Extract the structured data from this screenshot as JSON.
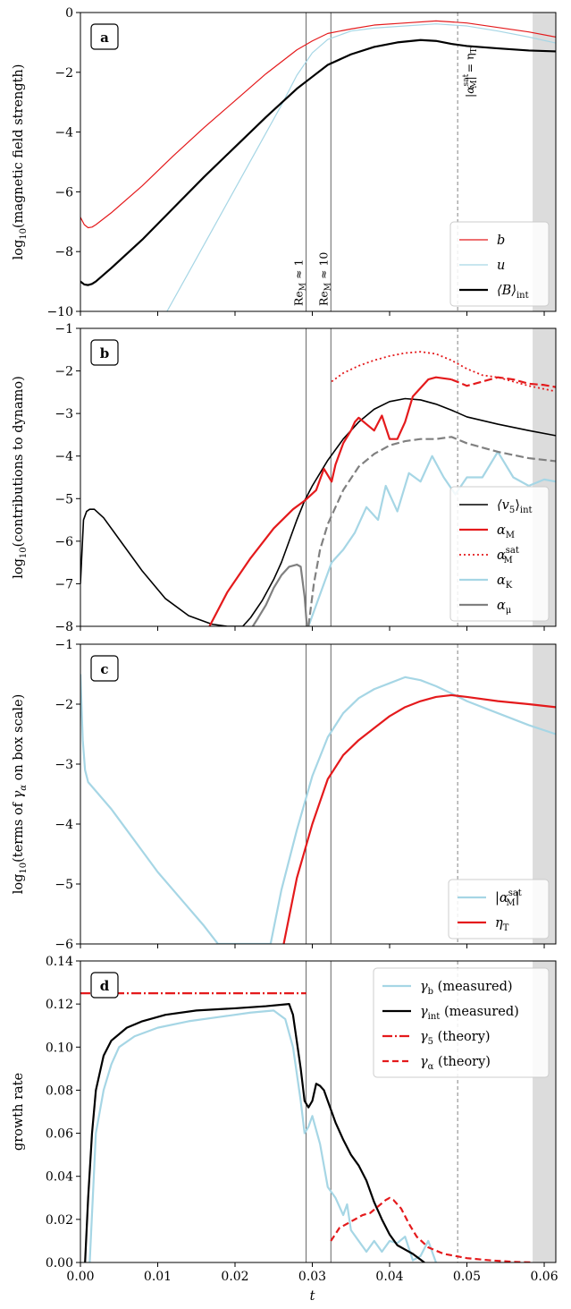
{
  "chart_data": [
    {
      "type": "line",
      "panel": "a",
      "ylabel": "log10(magnetic field strength)",
      "xlim": [
        0,
        0.0615
      ],
      "ylim": [
        -10,
        0
      ],
      "yticks": [
        "0",
        "−2",
        "−4",
        "−6",
        "−8",
        "−10"
      ],
      "vlines": [
        {
          "x": 0.0292,
          "label": "Re_M ≈ 1"
        },
        {
          "x": 0.0324,
          "label": "Re_M ≈ 10"
        }
      ],
      "dashed_vline": {
        "x": 0.0488,
        "label": "|α_M^sat| = η_T"
      },
      "shaded_region": [
        0.0585,
        0.0615
      ],
      "legend_position": "lower right",
      "series": [
        {
          "name": "b",
          "color": "#e41a1c",
          "width": 1.2,
          "x": [
            0.0,
            0.0005,
            0.001,
            0.0015,
            0.002,
            0.004,
            0.008,
            0.012,
            0.016,
            0.02,
            0.024,
            0.028,
            0.03,
            0.032,
            0.035,
            0.038,
            0.042,
            0.046,
            0.05,
            0.054,
            0.058,
            0.0615
          ],
          "y": [
            -6.85,
            -7.1,
            -7.2,
            -7.18,
            -7.1,
            -6.7,
            -5.8,
            -4.8,
            -3.85,
            -2.95,
            -2.05,
            -1.25,
            -0.95,
            -0.7,
            -0.55,
            -0.42,
            -0.35,
            -0.28,
            -0.35,
            -0.5,
            -0.65,
            -0.82
          ]
        },
        {
          "name": "u",
          "color": "#a6d6e5",
          "width": 1.2,
          "x": [
            0.0112,
            0.014,
            0.017,
            0.02,
            0.023,
            0.026,
            0.028,
            0.03,
            0.032,
            0.035,
            0.038,
            0.042,
            0.046,
            0.05,
            0.054,
            0.058,
            0.0615
          ],
          "y": [
            -10,
            -8.7,
            -7.3,
            -5.9,
            -4.5,
            -3.1,
            -2.1,
            -1.35,
            -0.9,
            -0.62,
            -0.52,
            -0.45,
            -0.38,
            -0.45,
            -0.62,
            -0.82,
            -1.02
          ]
        },
        {
          "name": "⟨B⟩int",
          "color": "#000000",
          "width": 2.2,
          "x": [
            0.0,
            0.0005,
            0.001,
            0.0015,
            0.002,
            0.004,
            0.008,
            0.012,
            0.016,
            0.02,
            0.024,
            0.028,
            0.03,
            0.032,
            0.035,
            0.038,
            0.041,
            0.044,
            0.046,
            0.048,
            0.05,
            0.054,
            0.058,
            0.0615
          ],
          "y": [
            -9.0,
            -9.1,
            -9.12,
            -9.08,
            -9.0,
            -8.55,
            -7.6,
            -6.55,
            -5.5,
            -4.5,
            -3.5,
            -2.55,
            -2.15,
            -1.75,
            -1.4,
            -1.15,
            -1.0,
            -0.92,
            -0.95,
            -1.05,
            -1.12,
            -1.2,
            -1.27,
            -1.3
          ]
        }
      ]
    },
    {
      "type": "line",
      "panel": "b",
      "ylabel": "log10(contributions to dynamo)",
      "xlim": [
        0,
        0.0615
      ],
      "ylim": [
        -8,
        -1
      ],
      "yticks": [
        "−1",
        "−2",
        "−3",
        "−4",
        "−5",
        "−6",
        "−7",
        "−8"
      ],
      "legend_position": "lower right",
      "series": [
        {
          "name": "⟨v5⟩int",
          "color": "#000000",
          "width": 1.6,
          "dash": "",
          "x": [
            0.0,
            0.0004,
            0.0008,
            0.0012,
            0.0018,
            0.003,
            0.005,
            0.008,
            0.011,
            0.014,
            0.017,
            0.019,
            0.021,
            0.022,
            0.0235,
            0.025,
            0.026,
            0.027,
            0.028,
            0.029,
            0.03,
            0.032,
            0.034,
            0.036,
            0.038,
            0.04,
            0.042,
            0.044,
            0.046,
            0.048,
            0.05,
            0.054,
            0.058,
            0.0615
          ],
          "y": [
            -7.0,
            -5.5,
            -5.3,
            -5.25,
            -5.25,
            -5.45,
            -5.95,
            -6.7,
            -7.35,
            -7.75,
            -7.95,
            -8.0,
            -8.0,
            -7.8,
            -7.4,
            -6.9,
            -6.5,
            -6.0,
            -5.5,
            -5.05,
            -4.7,
            -4.1,
            -3.6,
            -3.2,
            -2.9,
            -2.72,
            -2.65,
            -2.68,
            -2.78,
            -2.92,
            -3.08,
            -3.25,
            -3.4,
            -3.52
          ]
        },
        {
          "name": "αM",
          "color": "#e41a1c",
          "width": 2.2,
          "dash": "",
          "x": [
            0.0167,
            0.019,
            0.022,
            0.025,
            0.0275,
            0.029,
            0.0305,
            0.0315,
            0.0325,
            0.033,
            0.034,
            0.035,
            0.0355,
            0.036,
            0.037,
            0.038,
            0.039,
            0.04,
            0.041,
            0.042,
            0.043,
            0.044,
            0.045,
            0.046,
            0.048
          ],
          "y": [
            -8.0,
            -7.2,
            -6.4,
            -5.7,
            -5.25,
            -5.05,
            -4.8,
            -4.3,
            -4.6,
            -4.2,
            -3.7,
            -3.4,
            -3.2,
            -3.1,
            -3.25,
            -3.4,
            -3.05,
            -3.6,
            -3.6,
            -3.2,
            -2.6,
            -2.4,
            -2.2,
            -2.15,
            -2.2
          ]
        },
        {
          "name": "αM^sat",
          "color": "#e41a1c",
          "width": 1.8,
          "dash": "2,3",
          "x": [
            0.0325,
            0.034,
            0.036,
            0.038,
            0.04,
            0.042,
            0.044,
            0.046,
            0.048,
            0.05,
            0.052,
            0.054,
            0.056,
            0.058,
            0.0615
          ],
          "y": [
            -2.25,
            -2.05,
            -1.88,
            -1.75,
            -1.65,
            -1.58,
            -1.55,
            -1.6,
            -1.75,
            -1.95,
            -2.1,
            -2.15,
            -2.25,
            -2.35,
            -2.48
          ]
        },
        {
          "name": "αM (cont.)",
          "color": "#e41a1c",
          "width": 2.2,
          "dash": "9,4",
          "x": [
            0.048,
            0.05,
            0.052,
            0.054,
            0.056,
            0.058,
            0.06,
            0.0615
          ],
          "y": [
            -2.2,
            -2.35,
            -2.25,
            -2.15,
            -2.2,
            -2.3,
            -2.33,
            -2.38
          ]
        },
        {
          "name": "αK",
          "color": "#a6d6e5",
          "width": 2.2,
          "dash": "",
          "x": [
            0.0295,
            0.0305,
            0.0315,
            0.0325,
            0.034,
            0.0355,
            0.037,
            0.0385,
            0.0395,
            0.041,
            0.0425,
            0.044,
            0.0455,
            0.047,
            0.0485,
            0.05,
            0.052,
            0.054,
            0.056,
            0.058,
            0.06,
            0.0615
          ],
          "y": [
            -8.0,
            -7.5,
            -7.0,
            -6.5,
            -6.2,
            -5.8,
            -5.2,
            -5.5,
            -4.7,
            -5.3,
            -4.4,
            -4.6,
            -4.0,
            -4.5,
            -4.9,
            -4.5,
            -4.5,
            -3.9,
            -4.5,
            -4.7,
            -4.55,
            -4.6
          ]
        },
        {
          "name": "αμ",
          "color": "#808080",
          "width": 2.2,
          "dash": "",
          "x": [
            0.0223,
            0.023,
            0.024,
            0.025,
            0.026,
            0.027,
            0.028,
            0.0285,
            0.029,
            0.0293
          ],
          "y": [
            -8.0,
            -7.8,
            -7.5,
            -7.1,
            -6.8,
            -6.6,
            -6.55,
            -6.6,
            -7.3,
            -8.0
          ]
        },
        {
          "name": "αμ (cont.)",
          "color": "#808080",
          "width": 2.2,
          "dash": "9,4",
          "x": [
            0.0295,
            0.0302,
            0.031,
            0.032,
            0.034,
            0.036,
            0.038,
            0.04,
            0.042,
            0.044,
            0.046,
            0.048,
            0.05,
            0.054,
            0.058,
            0.0615
          ],
          "y": [
            -8.0,
            -7.0,
            -6.2,
            -5.6,
            -4.8,
            -4.25,
            -3.95,
            -3.75,
            -3.65,
            -3.6,
            -3.6,
            -3.55,
            -3.7,
            -3.9,
            -4.05,
            -4.12
          ]
        }
      ]
    },
    {
      "type": "line",
      "panel": "c",
      "ylabel": "log10(terms of γα on box scale)",
      "xlim": [
        0,
        0.0615
      ],
      "ylim": [
        -6,
        -1
      ],
      "yticks": [
        "−1",
        "−2",
        "−3",
        "−4",
        "−5",
        "−6"
      ],
      "legend_position": "lower right",
      "series": [
        {
          "name": "|αM^sat|",
          "color": "#a6d6e5",
          "width": 2.2,
          "x": [
            0.0,
            0.0003,
            0.0006,
            0.001,
            0.002,
            0.004,
            0.006,
            0.008,
            0.01,
            0.012,
            0.014,
            0.016,
            0.0178,
            0.0246,
            0.026,
            0.028,
            0.03,
            0.032,
            0.034,
            0.036,
            0.038,
            0.04,
            0.042,
            0.044,
            0.046,
            0.048,
            0.05,
            0.054,
            0.058,
            0.0615
          ],
          "y": [
            -1.5,
            -2.6,
            -3.1,
            -3.3,
            -3.45,
            -3.75,
            -4.1,
            -4.45,
            -4.8,
            -5.1,
            -5.4,
            -5.7,
            -6.0,
            -6.0,
            -5.1,
            -4.1,
            -3.2,
            -2.55,
            -2.15,
            -1.9,
            -1.75,
            -1.65,
            -1.55,
            -1.6,
            -1.7,
            -1.82,
            -1.95,
            -2.15,
            -2.35,
            -2.5
          ]
        },
        {
          "name": "ηT",
          "color": "#e41a1c",
          "width": 2.2,
          "x": [
            0.0263,
            0.028,
            0.03,
            0.032,
            0.034,
            0.036,
            0.038,
            0.04,
            0.042,
            0.044,
            0.046,
            0.048,
            0.05,
            0.054,
            0.058,
            0.0615
          ],
          "y": [
            -6.0,
            -4.9,
            -4.0,
            -3.25,
            -2.85,
            -2.6,
            -2.4,
            -2.2,
            -2.05,
            -1.95,
            -1.88,
            -1.85,
            -1.88,
            -1.95,
            -2.0,
            -2.05
          ]
        }
      ]
    },
    {
      "type": "line",
      "panel": "d",
      "ylabel": "growth rate",
      "xlabel": "t",
      "xlim": [
        0,
        0.0615
      ],
      "ylim": [
        0,
        0.14
      ],
      "yticks": [
        "0.14",
        "0.12",
        "0.10",
        "0.08",
        "0.06",
        "0.04",
        "0.02",
        "0.00"
      ],
      "xticks": [
        "0.00",
        "0.01",
        "0.02",
        "0.03",
        "0.04",
        "0.05",
        "0.06"
      ],
      "legend_position": "upper right",
      "series": [
        {
          "name": "γb (measured)",
          "color": "#a6d6e5",
          "width": 2.2,
          "dash": "",
          "x": [
            0.0012,
            0.002,
            0.003,
            0.004,
            0.005,
            0.007,
            0.01,
            0.014,
            0.018,
            0.022,
            0.025,
            0.0265,
            0.0275,
            0.0285,
            0.029,
            0.0295,
            0.03,
            0.031,
            0.032,
            0.033,
            0.034,
            0.0345,
            0.035,
            0.036,
            0.037,
            0.038,
            0.039,
            0.04,
            0.041,
            0.042,
            0.043,
            0.044,
            0.045,
            0.046
          ],
          "y": [
            0.0,
            0.06,
            0.08,
            0.092,
            0.1,
            0.105,
            0.109,
            0.112,
            0.114,
            0.116,
            0.117,
            0.113,
            0.1,
            0.075,
            0.06,
            0.063,
            0.068,
            0.055,
            0.035,
            0.03,
            0.022,
            0.027,
            0.015,
            0.01,
            0.005,
            0.01,
            0.005,
            0.01,
            0.009,
            0.012,
            0.001,
            0.003,
            0.01,
            0.0
          ]
        },
        {
          "name": "γint (measured)",
          "color": "#000000",
          "width": 2.2,
          "dash": "",
          "x": [
            0.0006,
            0.001,
            0.0015,
            0.002,
            0.003,
            0.004,
            0.006,
            0.008,
            0.011,
            0.015,
            0.02,
            0.024,
            0.027,
            0.0275,
            0.0285,
            0.029,
            0.0295,
            0.03,
            0.0305,
            0.031,
            0.0315,
            0.032,
            0.033,
            0.034,
            0.035,
            0.036,
            0.037,
            0.038,
            0.039,
            0.04,
            0.041,
            0.042,
            0.043,
            0.0445
          ],
          "y": [
            0.0,
            0.03,
            0.06,
            0.08,
            0.096,
            0.103,
            0.109,
            0.112,
            0.115,
            0.117,
            0.118,
            0.119,
            0.12,
            0.115,
            0.09,
            0.075,
            0.072,
            0.075,
            0.083,
            0.082,
            0.08,
            0.075,
            0.065,
            0.057,
            0.05,
            0.045,
            0.038,
            0.028,
            0.02,
            0.013,
            0.008,
            0.006,
            0.004,
            0.0
          ]
        },
        {
          "name": "γ5 (theory)",
          "color": "#e41a1c",
          "width": 2.2,
          "dash": "11,3,2,3",
          "x": [
            0.0,
            0.0292
          ],
          "y": [
            0.125,
            0.125
          ]
        },
        {
          "name": "γα (theory)",
          "color": "#e41a1c",
          "width": 2.2,
          "dash": "7,4",
          "x": [
            0.0324,
            0.0335,
            0.0345,
            0.0355,
            0.0365,
            0.0375,
            0.0385,
            0.0395,
            0.04,
            0.0405,
            0.0415,
            0.0425,
            0.0435,
            0.045,
            0.047,
            0.05,
            0.053,
            0.056,
            0.0585
          ],
          "y": [
            0.01,
            0.016,
            0.018,
            0.02,
            0.022,
            0.023,
            0.026,
            0.029,
            0.03,
            0.029,
            0.025,
            0.018,
            0.012,
            0.007,
            0.004,
            0.002,
            0.001,
            0.0003,
            0.0
          ]
        }
      ]
    }
  ],
  "panels": {
    "a": {
      "letter": "a",
      "ylabel_prefix": "log",
      "ylabel_sub": "10",
      "ylabel_rest": "(magnetic field strength)",
      "annot_rem1_a": "Re",
      "annot_rem1_sub": "M",
      "annot_rem1_b": " ≈ 1",
      "annot_rem10_a": "Re",
      "annot_rem10_sub": "M",
      "annot_rem10_b": " ≈ 10",
      "annot_eta_a": "|α",
      "annot_eta_sub": "M",
      "annot_eta_sup": "sat",
      "annot_eta_b": "| = η",
      "annot_eta_sub2": "T",
      "legend": [
        {
          "main": "b",
          "sub": "",
          "sup": "",
          "tail": ""
        },
        {
          "main": "u",
          "sub": "",
          "sup": "",
          "tail": ""
        },
        {
          "main": "⟨B⟩",
          "sub": "int",
          "sup": "",
          "tail": ""
        }
      ]
    },
    "b": {
      "letter": "b",
      "ylabel_prefix": "log",
      "ylabel_sub": "10",
      "ylabel_rest": "(contributions to dynamo)",
      "legend": [
        {
          "main": "⟨v",
          "sub": "5",
          "sup": "",
          "tail": "⟩",
          "sub2": "int"
        },
        {
          "main": "α",
          "sub": "M",
          "sup": "",
          "tail": ""
        },
        {
          "main": "α",
          "sub": "M",
          "sup": "sat",
          "tail": ""
        },
        {
          "main": "α",
          "sub": "K",
          "sup": "",
          "tail": ""
        },
        {
          "main": "α",
          "sub": "μ",
          "sup": "",
          "tail": ""
        }
      ]
    },
    "c": {
      "letter": "c",
      "ylabel_prefix": "log",
      "ylabel_sub": "10",
      "ylabel_rest": "(terms of ",
      "ylabel_gamma": "γ",
      "ylabel_gamma_sub": "α",
      "ylabel_tail": " on box scale)",
      "legend": [
        {
          "main": "|α",
          "sub": "M",
          "sup": "sat",
          "tail": "|"
        },
        {
          "main": "η",
          "sub": "T",
          "sup": "",
          "tail": ""
        }
      ]
    },
    "d": {
      "letter": "d",
      "ylabel": "growth rate",
      "xlabel": "t",
      "legend": [
        {
          "main": "γ",
          "sub": "b",
          "sup": "",
          "tail": " (measured)"
        },
        {
          "main": "γ",
          "sub": "int",
          "sup": "",
          "tail": " (measured)"
        },
        {
          "main": "γ",
          "sub": "5",
          "sup": "",
          "tail": " (theory)"
        },
        {
          "main": "γ",
          "sub": "α",
          "sup": "",
          "tail": " (theory)"
        }
      ]
    }
  }
}
